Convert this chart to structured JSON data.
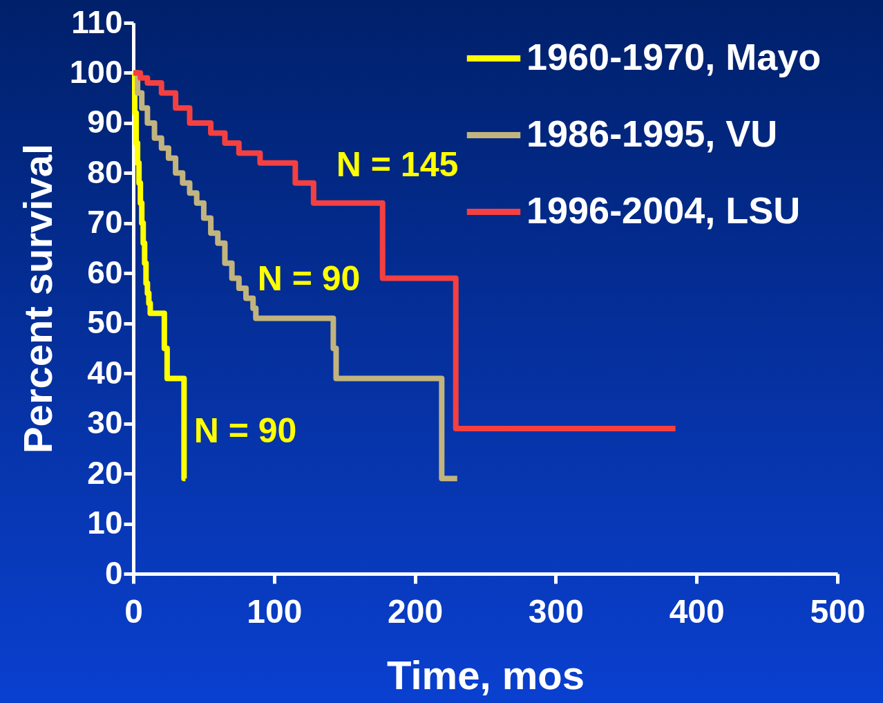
{
  "chart_data": {
    "type": "step",
    "xlabel": "Time, mos",
    "ylabel": "Percent survival",
    "xlim": [
      0,
      500
    ],
    "xticks": [
      0,
      100,
      200,
      300,
      400,
      500
    ],
    "ylim": [
      0,
      110
    ],
    "yticks": [
      0,
      10,
      20,
      30,
      40,
      50,
      60,
      70,
      80,
      90,
      100,
      110
    ],
    "grid": false,
    "legend": "top right",
    "series": [
      {
        "name": "1960-1970,  Mayo",
        "color": "#ffff00",
        "x": [
          0,
          1,
          2,
          3,
          4,
          5,
          6,
          7,
          8,
          9,
          10,
          11,
          12,
          22,
          24,
          36,
          37
        ],
        "values": [
          100,
          92,
          86,
          82,
          78,
          74,
          70,
          66,
          62,
          58,
          56,
          54,
          52,
          45,
          39,
          19,
          19
        ]
      },
      {
        "name": "1986-1995, VU",
        "color": "#c2b47e",
        "x": [
          0,
          3,
          6,
          10,
          15,
          20,
          25,
          30,
          35,
          40,
          45,
          50,
          55,
          60,
          65,
          70,
          75,
          80,
          85,
          87,
          142,
          144,
          219,
          230
        ],
        "values": [
          100,
          96,
          93,
          90,
          87,
          85,
          83,
          80,
          78,
          76,
          74,
          71,
          68,
          66,
          62,
          59,
          57,
          55,
          53,
          51,
          45,
          39,
          19,
          19
        ]
      },
      {
        "name": "1996-2004, LSU",
        "color": "#f44040",
        "x": [
          0,
          5,
          10,
          20,
          30,
          40,
          55,
          65,
          75,
          90,
          115,
          128,
          177,
          229,
          385
        ],
        "values": [
          100,
          99,
          98,
          96,
          93,
          90,
          88,
          86,
          84,
          82,
          78,
          74,
          59,
          29,
          29
        ]
      }
    ],
    "annotations": [
      "N = 145",
      "N = 90",
      "N = 90"
    ]
  }
}
